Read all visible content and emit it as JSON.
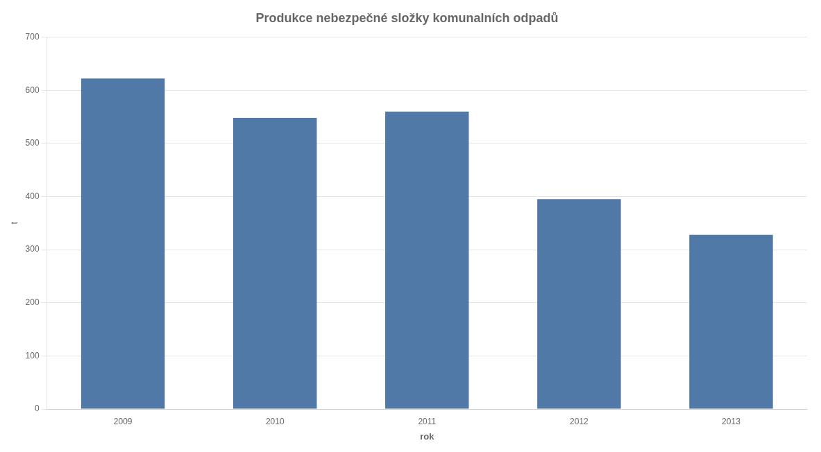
{
  "chart_data": {
    "type": "bar",
    "title": "Produkce nebezpečné složky komunalních odpadů",
    "categories": [
      "2009",
      "2010",
      "2011",
      "2012",
      "2013"
    ],
    "values": [
      622,
      548,
      560,
      395,
      328
    ],
    "color": "#5079a8",
    "xlabel": "rok",
    "ylabel": "t",
    "ylim": [
      0,
      700
    ],
    "yticks": [
      0,
      100,
      200,
      300,
      400,
      500,
      600,
      700
    ],
    "grid": true
  }
}
